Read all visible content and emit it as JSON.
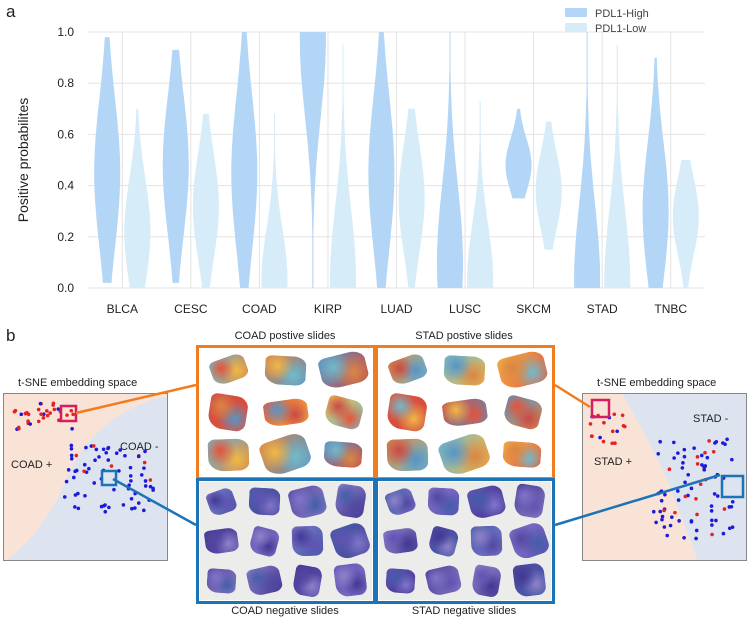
{
  "panel_a_letter": "a",
  "panel_b_letter": "b",
  "chart_data": {
    "type": "violin",
    "categories": [
      "BLCA",
      "CESC",
      "COAD",
      "KIRP",
      "LUAD",
      "LUSC",
      "SKCM",
      "STAD",
      "TNBC"
    ],
    "ylabel": "Positive probabilites",
    "xlabel": "",
    "ylim": [
      0,
      1.0
    ],
    "yticks": [
      0.0,
      0.2,
      0.4,
      0.6,
      0.8,
      1.0
    ],
    "ytick_labels": [
      "0.0",
      "0.2",
      "0.4",
      "0.6",
      "0.8",
      "1.0"
    ],
    "grid": true,
    "legend_position": "top-right",
    "series": [
      {
        "name": "PDL1-High",
        "color": "#b3d6f6",
        "range": [
          [
            0.02,
            0.98
          ],
          [
            0.02,
            0.93
          ],
          [
            0.0,
            1.0
          ],
          [
            0.0,
            1.0
          ],
          [
            0.0,
            1.0
          ],
          [
            0.0,
            1.0
          ],
          [
            0.35,
            0.7
          ],
          [
            0.0,
            1.0
          ],
          [
            0.0,
            0.9
          ]
        ],
        "peak": [
          0.45,
          0.48,
          0.45,
          0.97,
          0.45,
          0.1,
          0.48,
          0.03,
          0.3
        ]
      },
      {
        "name": "PDL1-Low",
        "color": "#d6ecf8",
        "range": [
          [
            0.0,
            0.7
          ],
          [
            0.0,
            0.68
          ],
          [
            0.0,
            0.68
          ],
          [
            0.0,
            0.95
          ],
          [
            0.0,
            0.7
          ],
          [
            0.0,
            0.73
          ],
          [
            0.15,
            0.65
          ],
          [
            0.0,
            0.95
          ],
          [
            0.0,
            0.5
          ]
        ],
        "peak": [
          0.22,
          0.32,
          0.03,
          0.03,
          0.35,
          0.03,
          0.38,
          0.02,
          0.28
        ]
      }
    ]
  },
  "panel_b": {
    "left_tsne": {
      "title": "t-SNE embedding space",
      "pos_label": "COAD +",
      "neg_label": "COAD -"
    },
    "right_tsne": {
      "title": "t-SNE embedding space",
      "pos_label": "STAD +",
      "neg_label": "STAD -"
    },
    "captions": {
      "coad_pos": "COAD postive slides",
      "stad_pos": "STAD postive slides",
      "coad_neg": "COAD negative slides",
      "stad_neg": "STAD negative slides"
    },
    "colors": {
      "positive_frame": "#f07c1e",
      "negative_frame": "#1c73b6",
      "tsne_pos_bg": "#f8e3d6",
      "tsne_neg_bg": "#dde3ef",
      "highlight_pos": "#d71d5d",
      "highlight_neg": "#1c73b6"
    }
  }
}
